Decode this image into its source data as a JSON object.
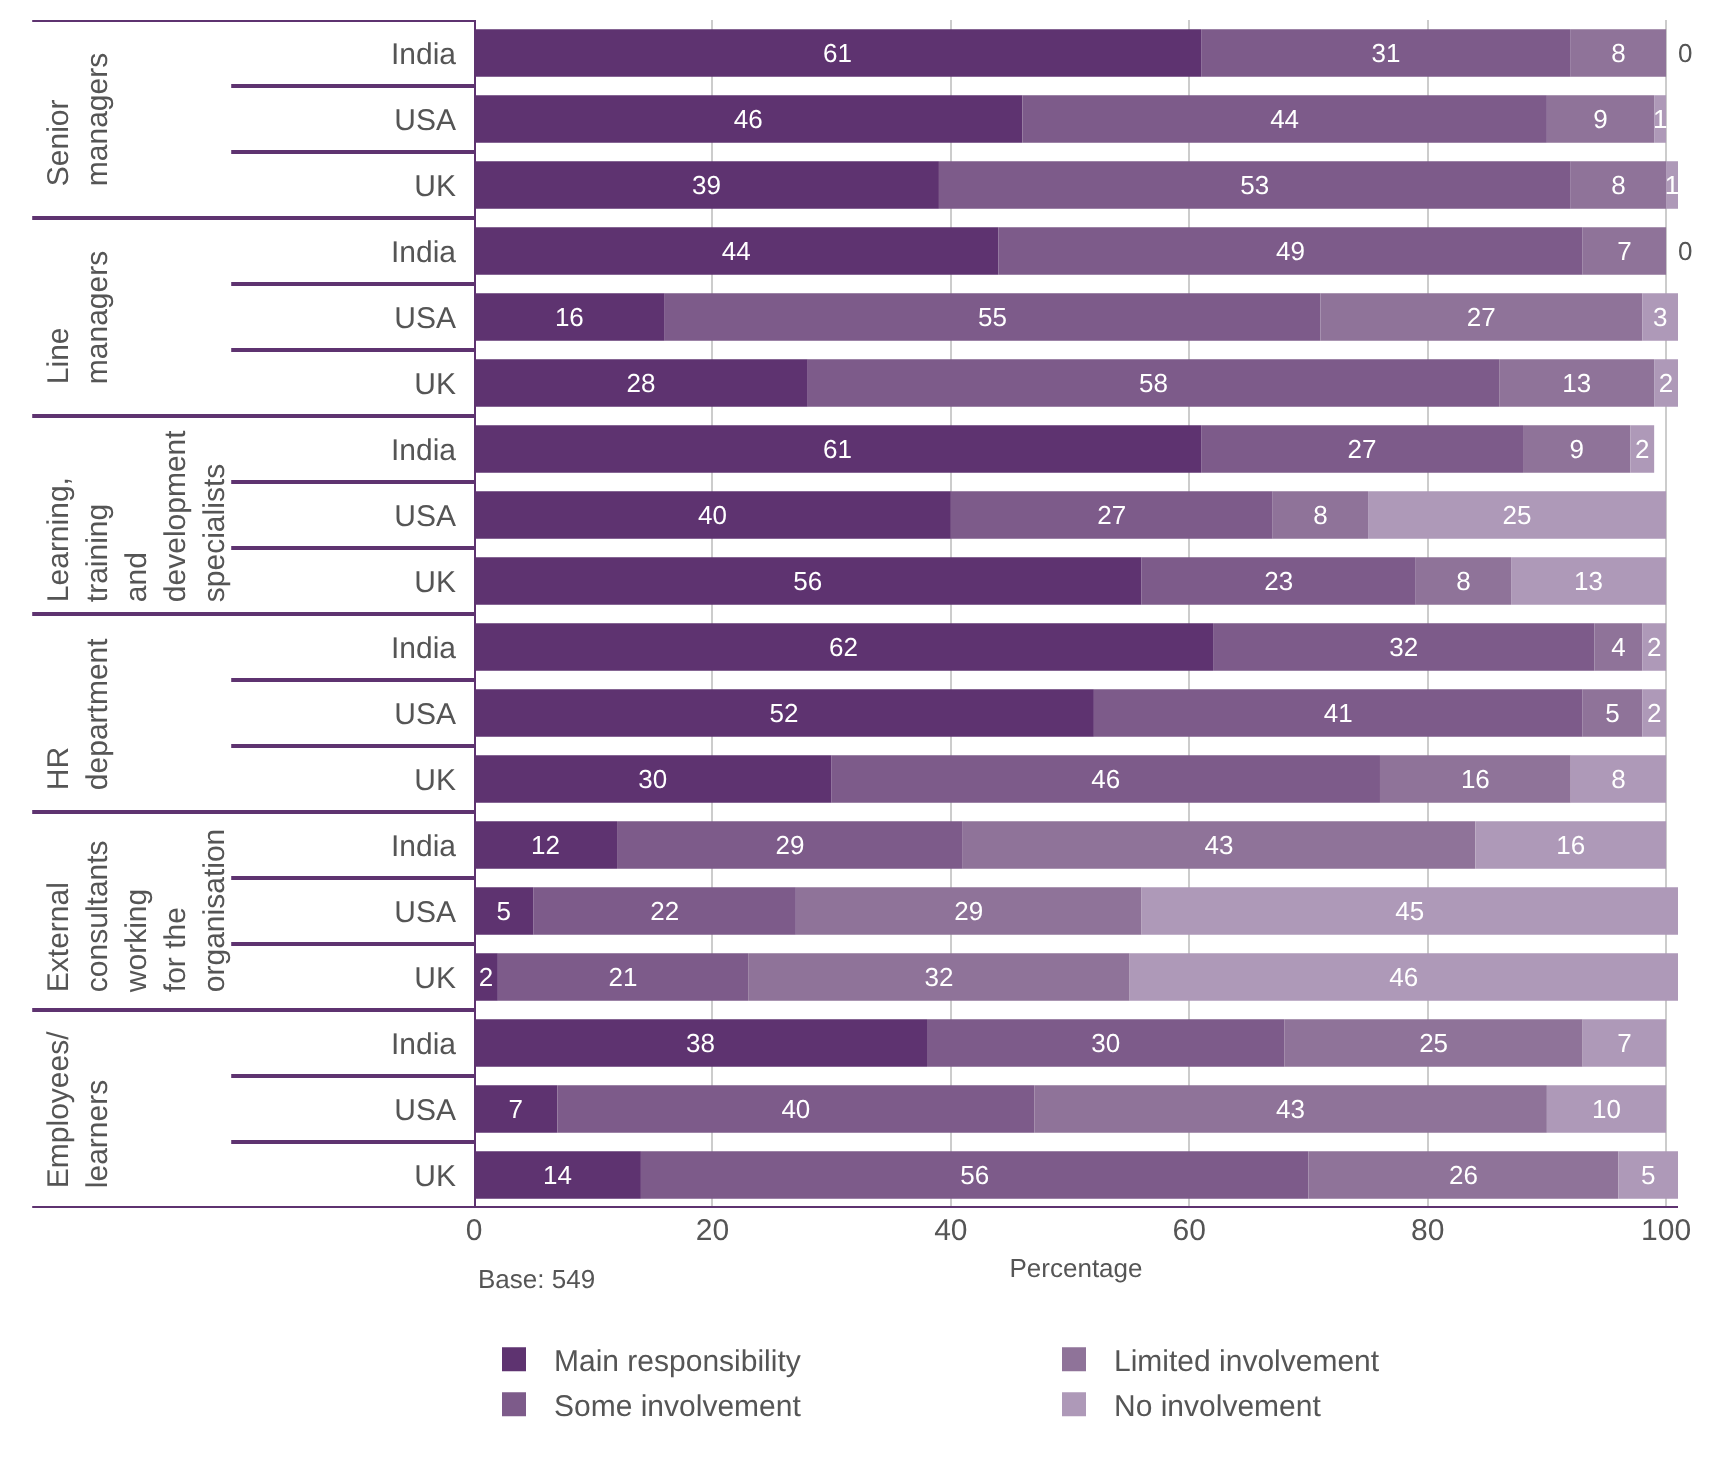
{
  "chart_data": {
    "type": "bar",
    "orientation": "horizontal",
    "stacked": true,
    "data_labels": true,
    "categories": [
      "India",
      "USA",
      "UK",
      "India",
      "USA",
      "UK",
      "India",
      "USA",
      "UK",
      "India",
      "USA",
      "UK",
      "India",
      "USA",
      "UK",
      "India",
      "USA",
      "UK"
    ],
    "series": [
      {
        "name": "Main responsibility",
        "color": "#5e3370",
        "values": [
          61,
          46,
          39,
          44,
          16,
          28,
          61,
          40,
          56,
          62,
          52,
          30,
          12,
          5,
          2,
          38,
          7,
          14
        ]
      },
      {
        "name": "Some involvement",
        "color": "#7d5b8a",
        "values": [
          31,
          44,
          53,
          49,
          55,
          58,
          27,
          27,
          23,
          32,
          41,
          46,
          29,
          22,
          21,
          30,
          40,
          56
        ]
      },
      {
        "name": "Limited involvement",
        "color": "#8f7399",
        "values": [
          8,
          9,
          8,
          7,
          27,
          13,
          9,
          8,
          8,
          4,
          5,
          16,
          43,
          29,
          32,
          25,
          43,
          26
        ]
      },
      {
        "name": "No involvement",
        "color": "#ae99b8",
        "values": [
          0,
          1,
          1,
          0,
          3,
          2,
          2,
          25,
          13,
          2,
          2,
          8,
          16,
          45,
          46,
          7,
          10,
          5
        ]
      }
    ],
    "xlabel": "Percentage",
    "xlim": [
      0,
      101
    ],
    "xticks": [
      0,
      20,
      40,
      60,
      80,
      100
    ],
    "grid": "x",
    "legend": "bottom",
    "annotations": [
      "Senior managers",
      "Line managers",
      "Learning, training and development specialists",
      "HR department",
      "External consultants working for the organisation",
      "Employees/ learners",
      "Base: 549"
    ]
  }
}
